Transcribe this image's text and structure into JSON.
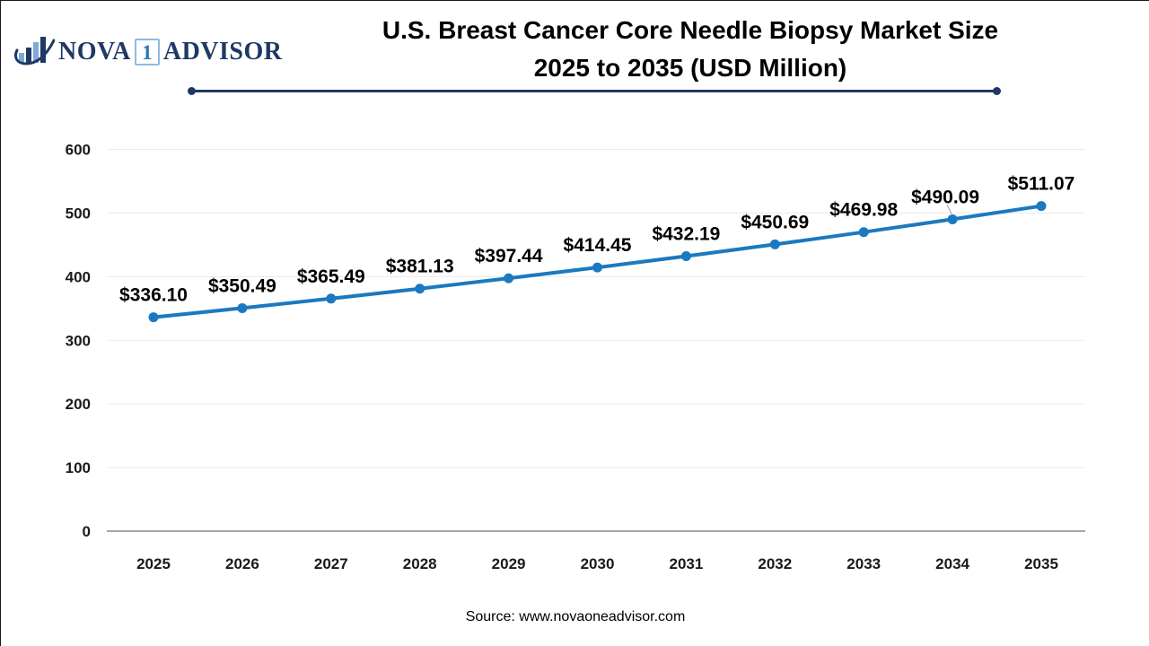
{
  "logo": {
    "icon": "bar-chart-growth-icon",
    "nova": "NOVA",
    "one": "1",
    "advisor": "ADVISOR",
    "navy": "#1F3864",
    "light_blue": "#7FA8D9",
    "one_color": "#2E75B6",
    "one_box_border": "#92B9E3"
  },
  "title": {
    "line1": "U.S. Breast Cancer Core Needle Biopsy Market Size",
    "line2": "2025 to 2035 (USD Million)"
  },
  "chart_data": {
    "type": "line",
    "title": "U.S. Breast Cancer Core Needle Biopsy Market Size 2025 to 2035 (USD Million)",
    "categories": [
      "2025",
      "2026",
      "2027",
      "2028",
      "2029",
      "2030",
      "2031",
      "2032",
      "2033",
      "2034",
      "2035"
    ],
    "values": [
      336.1,
      350.49,
      365.49,
      381.13,
      397.44,
      414.45,
      432.19,
      450.69,
      469.98,
      490.09,
      511.07
    ],
    "data_labels": [
      "$336.10",
      "$350.49",
      "$365.49",
      "$381.13",
      "$397.44",
      "$414.45",
      "$432.19",
      "$450.69",
      "$469.98",
      "$490.09",
      "$511.07"
    ],
    "xlabel": "",
    "ylabel": "",
    "ylim": [
      0,
      600
    ],
    "yticks": [
      0,
      100,
      200,
      300,
      400,
      500,
      600
    ],
    "grid": true,
    "legend": false,
    "line_color": "#1B79C0",
    "marker_color": "#1B79C0",
    "grid_color": "#EAEAEA",
    "axis_color": "#A6A6A6",
    "label_adjustments": {
      "2034": {
        "dx": -8,
        "leader": true
      }
    }
  },
  "footer": {
    "source": "Source: www.novaoneadvisor.com"
  }
}
